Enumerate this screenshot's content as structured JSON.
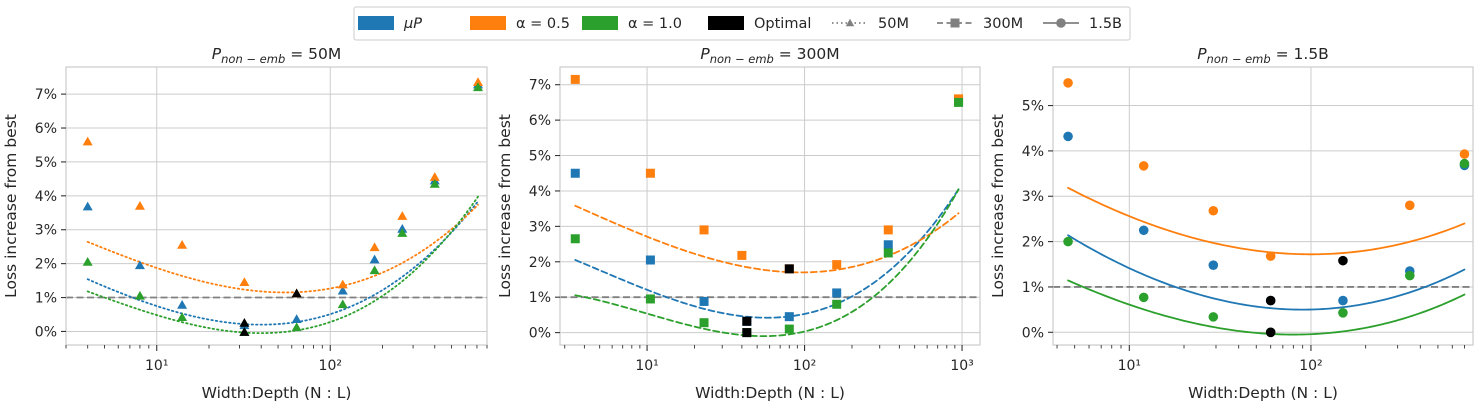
{
  "legend": {
    "entries": [
      {
        "label": "μP",
        "kind": "patch",
        "color": "#1f77b4"
      },
      {
        "label": "α = 0.5",
        "kind": "patch",
        "color": "#ff7f0e"
      },
      {
        "label": "α = 1.0",
        "kind": "patch",
        "color": "#2ca02c"
      },
      {
        "label": "Optimal",
        "kind": "patch",
        "color": "#000000"
      },
      {
        "label": "50M",
        "kind": "line",
        "dash": "dotted",
        "marker": "triangle",
        "color": "#808080"
      },
      {
        "label": "300M",
        "kind": "line",
        "dash": "dashed",
        "marker": "square",
        "color": "#808080"
      },
      {
        "label": "1.5B",
        "kind": "line",
        "dash": "solid",
        "marker": "circle",
        "color": "#808080"
      }
    ]
  },
  "colors": {
    "mup": "#1f77b4",
    "alpha05": "#ff7f0e",
    "alpha10": "#2ca02c",
    "optimal": "#000000",
    "reference": "#808080",
    "grid": "#cccccc"
  },
  "chart_data": [
    {
      "type": "scatter",
      "title": "P_non−emb = 50M",
      "title_parts": {
        "base": "P",
        "sub": "non − emb",
        "suffix": " = 50M"
      },
      "xlabel": "Width:Depth (N : L)",
      "ylabel": "Loss increase from best",
      "xscale": "log",
      "xlim": [
        3,
        800
      ],
      "ylim": [
        -0.4,
        7.8
      ],
      "xticks": [
        10,
        100
      ],
      "xtick_labels": [
        "10¹",
        "10²"
      ],
      "yticks": [
        0,
        1,
        2,
        3,
        4,
        5,
        6,
        7
      ],
      "ytick_labels": [
        "0%",
        "1%",
        "2%",
        "3%",
        "4%",
        "5%",
        "6%",
        "7%"
      ],
      "reference_line": 1.0,
      "marker": "triangle",
      "linestyle": "dotted",
      "series": [
        {
          "name": "μP",
          "color_key": "mup",
          "points": [
            [
              4,
              3.68
            ],
            [
              8,
              1.95
            ],
            [
              14,
              0.78
            ],
            [
              32,
              0.18
            ],
            [
              64,
              0.36
            ],
            [
              118,
              1.2
            ],
            [
              180,
              2.12
            ],
            [
              260,
              3.02
            ],
            [
              400,
              4.45
            ],
            [
              710,
              7.28
            ]
          ],
          "fit": {
            "vertex_x": 40,
            "vertex_y": 0.2,
            "a": 1.78,
            "b": 0.44
          }
        },
        {
          "name": "α = 0.5",
          "color_key": "alpha05",
          "points": [
            [
              4,
              5.6
            ],
            [
              8,
              3.7
            ],
            [
              14,
              2.55
            ],
            [
              32,
              1.45
            ],
            [
              64,
              1.12
            ],
            [
              118,
              1.38
            ],
            [
              180,
              2.48
            ],
            [
              260,
              3.4
            ],
            [
              400,
              4.55
            ],
            [
              710,
              7.35
            ]
          ],
          "fit": {
            "vertex_x": 55,
            "vertex_y": 1.15,
            "a": 1.63,
            "b": 0.42
          }
        },
        {
          "name": "α = 1.0",
          "color_key": "alpha10",
          "points": [
            [
              4,
              2.05
            ],
            [
              8,
              1.05
            ],
            [
              14,
              0.42
            ],
            [
              32,
              -0.02
            ],
            [
              64,
              0.12
            ],
            [
              118,
              0.8
            ],
            [
              180,
              1.8
            ],
            [
              260,
              2.9
            ],
            [
              400,
              4.35
            ],
            [
              710,
              7.2
            ]
          ],
          "fit": {
            "vertex_x": 40,
            "vertex_y": -0.05,
            "a": 1.83,
            "b": 0.6
          }
        }
      ],
      "optimal": [
        [
          32,
          0.25
        ],
        [
          32,
          -0.02
        ],
        [
          64,
          1.12
        ]
      ]
    },
    {
      "type": "scatter",
      "title": "P_non−emb = 300M",
      "title_parts": {
        "base": "P",
        "sub": "non − emb",
        "suffix": " = 300M"
      },
      "xlabel": "Width:Depth (N : L)",
      "ylabel": "Loss increase from best",
      "xscale": "log",
      "xlim": [
        2.8,
        1300
      ],
      "ylim": [
        -0.35,
        7.5
      ],
      "xticks": [
        10,
        100,
        1000
      ],
      "xtick_labels": [
        "10¹",
        "10²",
        "10³"
      ],
      "yticks": [
        0,
        1,
        2,
        3,
        4,
        5,
        6,
        7
      ],
      "ytick_labels": [
        "0%",
        "1%",
        "2%",
        "3%",
        "4%",
        "5%",
        "6%",
        "7%"
      ],
      "reference_line": 1.0,
      "marker": "square",
      "linestyle": "dashed",
      "series": [
        {
          "name": "μP",
          "color_key": "mup",
          "points": [
            [
              3.5,
              4.5
            ],
            [
              10.5,
              2.05
            ],
            [
              23,
              0.88
            ],
            [
              43,
              0.32
            ],
            [
              80,
              0.45
            ],
            [
              160,
              1.12
            ],
            [
              340,
              2.48
            ],
            [
              950,
              6.55
            ]
          ],
          "fit": {
            "vertex_x": 58,
            "vertex_y": 0.42,
            "a": 1.78,
            "b": 0.56
          }
        },
        {
          "name": "α = 0.5",
          "color_key": "alpha05",
          "points": [
            [
              3.5,
              7.15
            ],
            [
              10.5,
              4.5
            ],
            [
              23,
              2.9
            ],
            [
              40,
              2.18
            ],
            [
              80,
              1.8
            ],
            [
              160,
              1.92
            ],
            [
              340,
              2.9
            ],
            [
              950,
              6.6
            ]
          ],
          "fit": {
            "vertex_x": 95,
            "vertex_y": 1.7,
            "a": 1.36,
            "b": 0.31
          }
        },
        {
          "name": "α = 1.0",
          "color_key": "alpha10",
          "points": [
            [
              3.5,
              2.65
            ],
            [
              10.5,
              0.95
            ],
            [
              23,
              0.28
            ],
            [
              43,
              0.0
            ],
            [
              80,
              0.1
            ],
            [
              160,
              0.8
            ],
            [
              340,
              2.25
            ],
            [
              950,
              6.5
            ]
          ],
          "fit": {
            "vertex_x": 55,
            "vertex_y": -0.1,
            "a": 1.74,
            "b": 0.78
          }
        }
      ],
      "optimal": [
        [
          43,
          0.32
        ],
        [
          80,
          1.8
        ],
        [
          43,
          0.0
        ]
      ]
    },
    {
      "type": "scatter",
      "title": "P_non−emb = 1.5B",
      "title_parts": {
        "base": "P",
        "sub": "non − emb",
        "suffix": " = 1.5B"
      },
      "xlabel": "Width:Depth (N : L)",
      "ylabel": "Loss increase from best",
      "xscale": "log",
      "xlim": [
        3.8,
        780
      ],
      "ylim": [
        -0.28,
        5.85
      ],
      "xticks": [
        10,
        100
      ],
      "xtick_labels": [
        "10¹",
        "10²"
      ],
      "yticks": [
        0,
        1,
        2,
        3,
        4,
        5
      ],
      "ytick_labels": [
        "0%",
        "1%",
        "2%",
        "3%",
        "4%",
        "5%"
      ],
      "reference_line": 1.0,
      "marker": "circle",
      "linestyle": "solid",
      "series": [
        {
          "name": "μP",
          "color_key": "mup",
          "points": [
            [
              4.6,
              4.32
            ],
            [
              12,
              2.25
            ],
            [
              29,
              1.48
            ],
            [
              60,
              0.7
            ],
            [
              150,
              0.7
            ],
            [
              350,
              1.35
            ],
            [
              700,
              3.68
            ]
          ],
          "fit": {
            "vertex_x": 90,
            "vertex_y": 0.5,
            "a": 1.06,
            "b": 0.06
          }
        },
        {
          "name": "α = 0.5",
          "color_key": "alpha05",
          "points": [
            [
              4.6,
              5.5
            ],
            [
              12,
              3.67
            ],
            [
              29,
              2.68
            ],
            [
              60,
              1.68
            ],
            [
              350,
              2.8
            ],
            [
              700,
              3.93
            ]
          ],
          "fit": {
            "vertex_x": 100,
            "vertex_y": 1.72,
            "a": 0.9,
            "b": 0.06
          }
        },
        {
          "name": "α = 1.0",
          "color_key": "alpha10",
          "points": [
            [
              4.6,
              2.0
            ],
            [
              12,
              0.77
            ],
            [
              29,
              0.34
            ],
            [
              60,
              0.0
            ],
            [
              150,
              0.43
            ],
            [
              350,
              1.25
            ],
            [
              700,
              3.72
            ]
          ],
          "fit": {
            "vertex_x": 80,
            "vertex_y": -0.05,
            "a": 0.9,
            "b": 0.1
          }
        }
      ],
      "optimal": [
        [
          60,
          0.7
        ],
        [
          150,
          1.58
        ],
        [
          60,
          0.0
        ]
      ]
    }
  ]
}
